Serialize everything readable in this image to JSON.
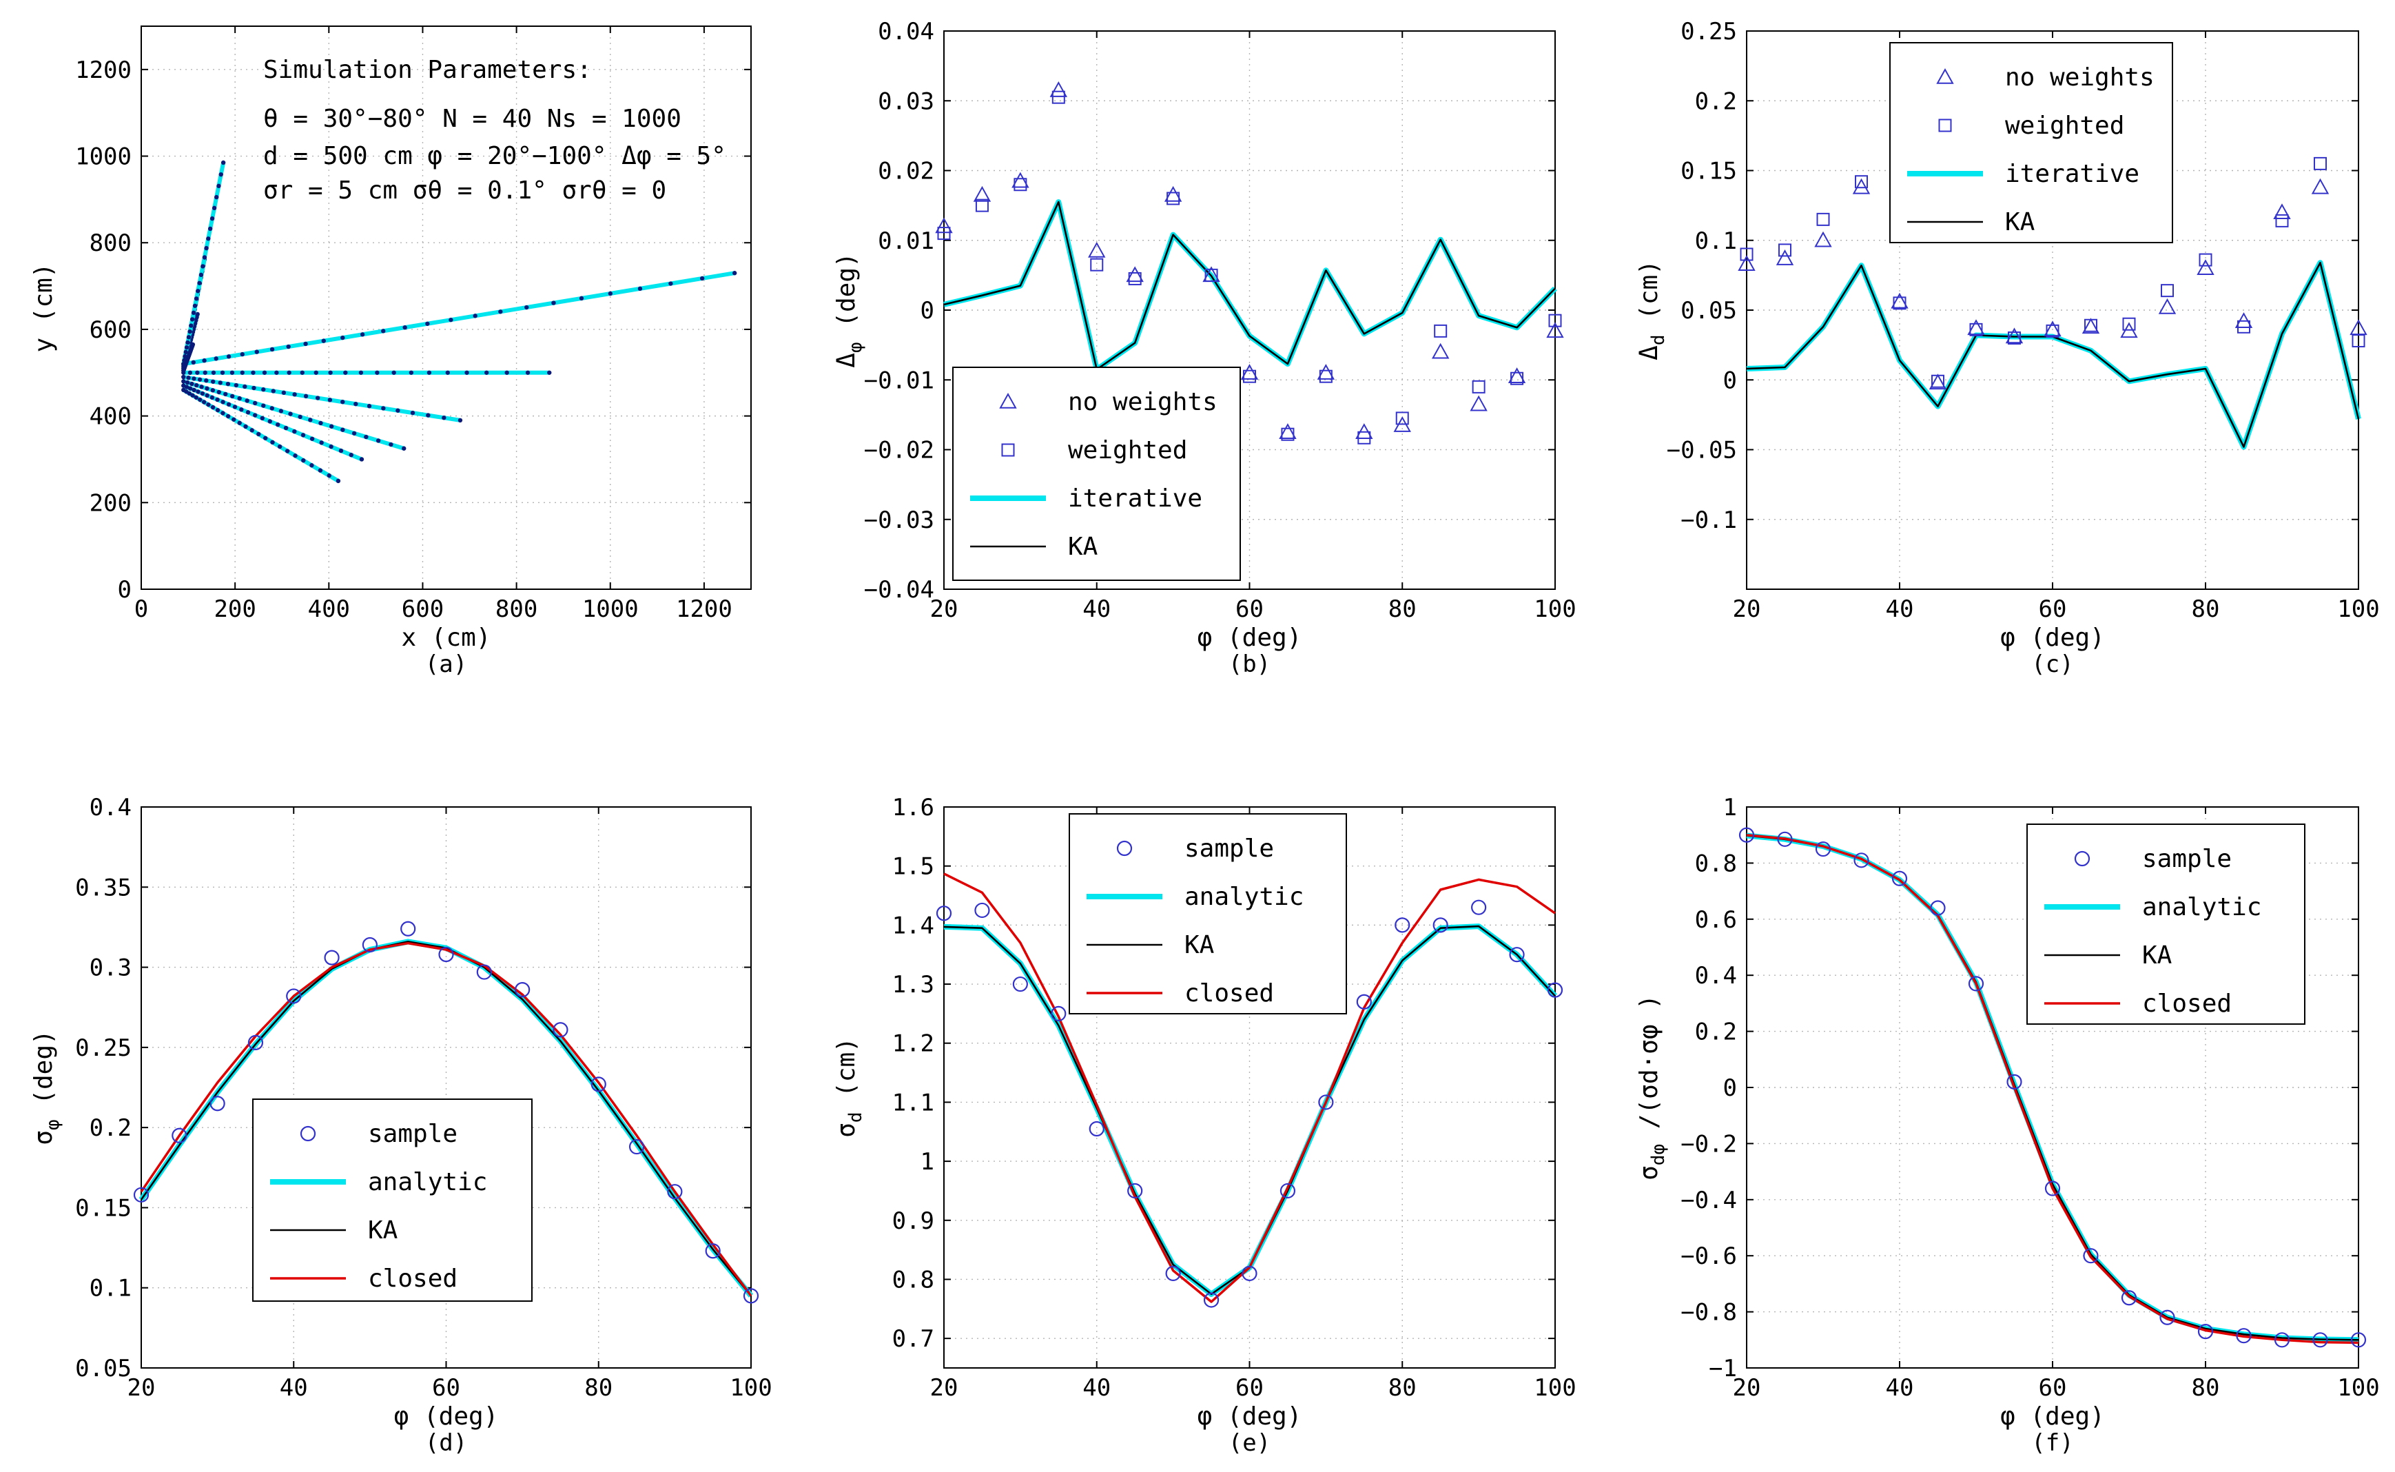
{
  "figure_params": {
    "header": "Simulation Parameters:",
    "line1": "θ = 30°−80°   N = 40   Ns = 1000",
    "line2": "d = 500 cm  φ = 20°−100°  Δφ = 5°",
    "line3": "σr = 5 cm   σθ = 0.1°   σrθ = 0"
  },
  "colors": {
    "cyan": "#00e5ee",
    "black": "#000000",
    "red": "#e00000",
    "marker": "#3333cc",
    "dots": "#0a1a7a"
  },
  "chart_data": [
    {
      "id": "a",
      "type": "line",
      "panel_label": "(a)",
      "xlabel": "x (cm)",
      "ylabel": "y (cm)",
      "xlim": [
        0,
        1300
      ],
      "ylim": [
        0,
        1300
      ],
      "xticks": [
        0,
        200,
        400,
        600,
        800,
        1000,
        1200
      ],
      "yticks": [
        0,
        200,
        400,
        600,
        800,
        1000,
        1200
      ],
      "line_endpoints": [
        {
          "start": [
            90,
            520
          ],
          "end": [
            1265,
            730
          ]
        },
        {
          "start": [
            90,
            500
          ],
          "end": [
            870,
            500
          ]
        },
        {
          "start": [
            90,
            490
          ],
          "end": [
            680,
            390
          ]
        },
        {
          "start": [
            90,
            480
          ],
          "end": [
            560,
            325
          ]
        },
        {
          "start": [
            90,
            470
          ],
          "end": [
            470,
            300
          ]
        },
        {
          "start": [
            90,
            460
          ],
          "end": [
            420,
            250
          ]
        },
        {
          "start": [
            90,
            510
          ],
          "end": [
            120,
            635
          ]
        },
        {
          "start": [
            90,
            515
          ],
          "end": [
            135,
            762
          ]
        },
        {
          "start": [
            90,
            520
          ],
          "end": [
            175,
            985
          ]
        },
        {
          "start": [
            90,
            505
          ],
          "end": [
            110,
            565
          ]
        }
      ]
    },
    {
      "id": "b",
      "type": "line",
      "panel_label": "(b)",
      "xlabel": "φ (deg)",
      "ylabel": "Δφ (deg)",
      "ylabel_main": "Δ",
      "ylabel_sub": "φ",
      "xlim": [
        20,
        100
      ],
      "ylim": [
        -0.04,
        0.04
      ],
      "xticks": [
        20,
        40,
        60,
        80,
        100
      ],
      "yticks": [
        -0.04,
        -0.03,
        -0.02,
        -0.01,
        0,
        0.01,
        0.02,
        0.03,
        0.04
      ],
      "ytick_labels": [
        "−0.04",
        "−0.03",
        "−0.02",
        "−0.01",
        "0",
        "0.01",
        "0.02",
        "0.03",
        "0.04"
      ],
      "x": [
        20,
        25,
        30,
        35,
        40,
        45,
        50,
        55,
        60,
        65,
        70,
        75,
        80,
        85,
        90,
        95,
        100
      ],
      "series": [
        {
          "name": "no weights",
          "style": "triangle",
          "values": [
            0.012,
            0.0165,
            0.0185,
            0.0315,
            0.0085,
            0.005,
            0.0165,
            0.005,
            -0.009,
            -0.0175,
            -0.009,
            -0.0175,
            -0.0165,
            -0.006,
            -0.0135,
            -0.0095,
            -0.003
          ]
        },
        {
          "name": "weighted",
          "style": "square",
          "values": [
            0.011,
            0.015,
            0.018,
            0.0305,
            0.0065,
            0.0045,
            0.016,
            0.005,
            -0.0095,
            -0.0178,
            -0.0095,
            -0.0183,
            -0.0155,
            -0.003,
            -0.011,
            -0.0098,
            -0.0015
          ]
        },
        {
          "name": "iterative",
          "style": "cyan",
          "values": [
            0.0008,
            0.0021,
            0.0035,
            0.0155,
            -0.0085,
            -0.0047,
            0.0108,
            0.0049,
            -0.0037,
            -0.0077,
            0.0057,
            -0.0034,
            -0.0004,
            0.0101,
            -0.0008,
            -0.0025,
            0.0031
          ]
        },
        {
          "name": "KA",
          "style": "black",
          "values": [
            0.0008,
            0.0021,
            0.0035,
            0.0155,
            -0.0085,
            -0.0047,
            0.0108,
            0.0049,
            -0.0037,
            -0.0077,
            0.0057,
            -0.0034,
            -0.0004,
            0.0101,
            -0.0008,
            -0.0025,
            0.0031
          ]
        }
      ]
    },
    {
      "id": "c",
      "type": "line",
      "panel_label": "(c)",
      "xlabel": "φ (deg)",
      "ylabel": "Δd (cm)",
      "ylabel_main": "Δ",
      "ylabel_sub": "d",
      "xlim": [
        20,
        100
      ],
      "ylim": [
        -0.15,
        0.25
      ],
      "xticks": [
        20,
        40,
        60,
        80,
        100
      ],
      "yticks": [
        -0.1,
        -0.05,
        0,
        0.05,
        0.1,
        0.15,
        0.2,
        0.25
      ],
      "ytick_labels": [
        "−0.1",
        "−0.05",
        "0",
        "0.05",
        "0.1",
        "0.15",
        "0.2",
        "0.25"
      ],
      "x": [
        20,
        25,
        30,
        35,
        40,
        45,
        50,
        55,
        60,
        65,
        70,
        75,
        80,
        85,
        90,
        95,
        100
      ],
      "series": [
        {
          "name": "no weights",
          "style": "triangle",
          "values": [
            0.083,
            0.087,
            0.1,
            0.138,
            0.056,
            -0.002,
            0.037,
            0.031,
            0.036,
            0.038,
            0.035,
            0.052,
            0.08,
            0.042,
            0.12,
            0.138,
            0.037
          ]
        },
        {
          "name": "weighted",
          "style": "square",
          "values": [
            0.09,
            0.093,
            0.115,
            0.142,
            0.055,
            -0.001,
            0.036,
            0.03,
            0.035,
            0.039,
            0.04,
            0.064,
            0.086,
            0.038,
            0.114,
            0.155,
            0.028
          ]
        },
        {
          "name": "iterative",
          "style": "cyan",
          "values": [
            0.008,
            0.009,
            0.038,
            0.082,
            0.014,
            -0.019,
            0.032,
            0.031,
            0.031,
            0.021,
            -0.001,
            0.004,
            0.008,
            -0.048,
            0.033,
            0.084,
            -0.028
          ]
        },
        {
          "name": "KA",
          "style": "black",
          "values": [
            0.008,
            0.009,
            0.038,
            0.082,
            0.014,
            -0.019,
            0.032,
            0.031,
            0.031,
            0.021,
            -0.001,
            0.004,
            0.008,
            -0.048,
            0.033,
            0.084,
            -0.028
          ]
        }
      ]
    },
    {
      "id": "d",
      "type": "line",
      "panel_label": "(d)",
      "xlabel": "φ (deg)",
      "ylabel": "σφ (deg)",
      "ylabel_main": "σ",
      "ylabel_sub": "φ",
      "xlim": [
        20,
        100
      ],
      "ylim": [
        0.05,
        0.4
      ],
      "xticks": [
        20,
        40,
        60,
        80,
        100
      ],
      "yticks": [
        0.05,
        0.1,
        0.15,
        0.2,
        0.25,
        0.3,
        0.35,
        0.4
      ],
      "ytick_labels": [
        "0.05",
        "0.1",
        "0.15",
        "0.2",
        "0.25",
        "0.3",
        "0.35",
        "0.4"
      ],
      "x": [
        20,
        25,
        30,
        35,
        40,
        45,
        50,
        55,
        60,
        65,
        70,
        75,
        80,
        85,
        90,
        95,
        100
      ],
      "series": [
        {
          "name": "sample",
          "style": "circle",
          "values": [
            0.158,
            0.195,
            0.215,
            0.253,
            0.282,
            0.306,
            0.314,
            0.324,
            0.308,
            0.297,
            0.286,
            0.261,
            0.227,
            0.188,
            0.16,
            0.123,
            0.095
          ]
        },
        {
          "name": "analytic",
          "style": "cyan",
          "values": [
            0.155,
            0.189,
            0.222,
            0.252,
            0.279,
            0.299,
            0.311,
            0.316,
            0.312,
            0.3,
            0.28,
            0.254,
            0.223,
            0.19,
            0.156,
            0.124,
            0.095
          ]
        },
        {
          "name": "KA",
          "style": "black",
          "values": [
            0.155,
            0.189,
            0.222,
            0.252,
            0.279,
            0.299,
            0.311,
            0.316,
            0.312,
            0.3,
            0.28,
            0.254,
            0.223,
            0.19,
            0.156,
            0.124,
            0.095
          ]
        },
        {
          "name": "closed",
          "style": "red",
          "values": [
            0.16,
            0.195,
            0.228,
            0.257,
            0.282,
            0.3,
            0.311,
            0.315,
            0.311,
            0.301,
            0.283,
            0.258,
            0.228,
            0.195,
            0.16,
            0.127,
            0.095
          ]
        }
      ]
    },
    {
      "id": "e",
      "type": "line",
      "panel_label": "(e)",
      "xlabel": "φ (deg)",
      "ylabel": "σd (cm)",
      "ylabel_main": "σ",
      "ylabel_sub": "d",
      "xlim": [
        20,
        100
      ],
      "ylim": [
        0.65,
        1.6
      ],
      "xticks": [
        20,
        40,
        60,
        80,
        100
      ],
      "yticks": [
        0.7,
        0.8,
        0.9,
        1,
        1.1,
        1.2,
        1.3,
        1.4,
        1.5,
        1.6
      ],
      "ytick_labels": [
        "0.7",
        "0.8",
        "0.9",
        "1",
        "1.1",
        "1.2",
        "1.3",
        "1.4",
        "1.5",
        "1.6"
      ],
      "x": [
        20,
        25,
        30,
        35,
        40,
        45,
        50,
        55,
        60,
        65,
        70,
        75,
        80,
        85,
        90,
        95,
        100
      ],
      "series": [
        {
          "name": "sample",
          "style": "circle",
          "values": [
            1.42,
            1.425,
            1.3,
            1.25,
            1.055,
            0.95,
            0.81,
            0.765,
            0.81,
            0.95,
            1.1,
            1.27,
            1.4,
            1.4,
            1.43,
            1.35,
            1.29
          ]
        },
        {
          "name": "analytic",
          "style": "cyan",
          "values": [
            1.397,
            1.395,
            1.335,
            1.23,
            1.09,
            0.945,
            0.825,
            0.775,
            0.82,
            0.95,
            1.1,
            1.24,
            1.34,
            1.395,
            1.398,
            1.35,
            1.28
          ]
        },
        {
          "name": "KA",
          "style": "black",
          "values": [
            1.397,
            1.395,
            1.335,
            1.23,
            1.09,
            0.945,
            0.825,
            0.775,
            0.82,
            0.95,
            1.1,
            1.24,
            1.34,
            1.395,
            1.398,
            1.35,
            1.28
          ]
        },
        {
          "name": "closed",
          "style": "red",
          "values": [
            1.487,
            1.455,
            1.37,
            1.245,
            1.095,
            0.94,
            0.815,
            0.762,
            0.82,
            0.955,
            1.1,
            1.26,
            1.37,
            1.46,
            1.477,
            1.465,
            1.42
          ]
        }
      ]
    },
    {
      "id": "f",
      "type": "line",
      "panel_label": "(f)",
      "xlabel": "φ (deg)",
      "ylabel": "σdφ /(σd·σφ )",
      "ylabel_main": "σ",
      "ylabel_sub": "dφ",
      "ylabel_tail": " /(σ·σ )",
      "xlim": [
        20,
        100
      ],
      "ylim": [
        -1,
        1
      ],
      "xticks": [
        20,
        40,
        60,
        80,
        100
      ],
      "yticks": [
        -1,
        -0.8,
        -0.6,
        -0.4,
        -0.2,
        0,
        0.2,
        0.4,
        0.6,
        0.8,
        1
      ],
      "ytick_labels": [
        "−1",
        "−0.8",
        "−0.6",
        "−0.4",
        "−0.2",
        "0",
        "0.2",
        "0.4",
        "0.6",
        "0.8",
        "1"
      ],
      "x": [
        20,
        25,
        30,
        35,
        40,
        45,
        50,
        55,
        60,
        65,
        70,
        75,
        80,
        85,
        90,
        95,
        100
      ],
      "series": [
        {
          "name": "sample",
          "style": "circle",
          "values": [
            0.9,
            0.885,
            0.85,
            0.81,
            0.745,
            0.64,
            0.37,
            0.02,
            -0.36,
            -0.6,
            -0.75,
            -0.82,
            -0.87,
            -0.885,
            -0.9,
            -0.9,
            -0.9
          ]
        },
        {
          "name": "analytic",
          "style": "cyan",
          "values": [
            0.898,
            0.885,
            0.86,
            0.815,
            0.74,
            0.615,
            0.375,
            0.01,
            -0.345,
            -0.595,
            -0.74,
            -0.82,
            -0.86,
            -0.88,
            -0.893,
            -0.898,
            -0.9
          ]
        },
        {
          "name": "KA",
          "style": "black",
          "values": [
            0.898,
            0.885,
            0.86,
            0.815,
            0.74,
            0.615,
            0.375,
            0.01,
            -0.345,
            -0.595,
            -0.74,
            -0.82,
            -0.86,
            -0.88,
            -0.893,
            -0.898,
            -0.9
          ]
        },
        {
          "name": "closed",
          "style": "red",
          "values": [
            0.9,
            0.887,
            0.86,
            0.815,
            0.74,
            0.612,
            0.37,
            0.0,
            -0.36,
            -0.605,
            -0.745,
            -0.825,
            -0.866,
            -0.888,
            -0.9,
            -0.908,
            -0.91
          ]
        }
      ]
    }
  ]
}
